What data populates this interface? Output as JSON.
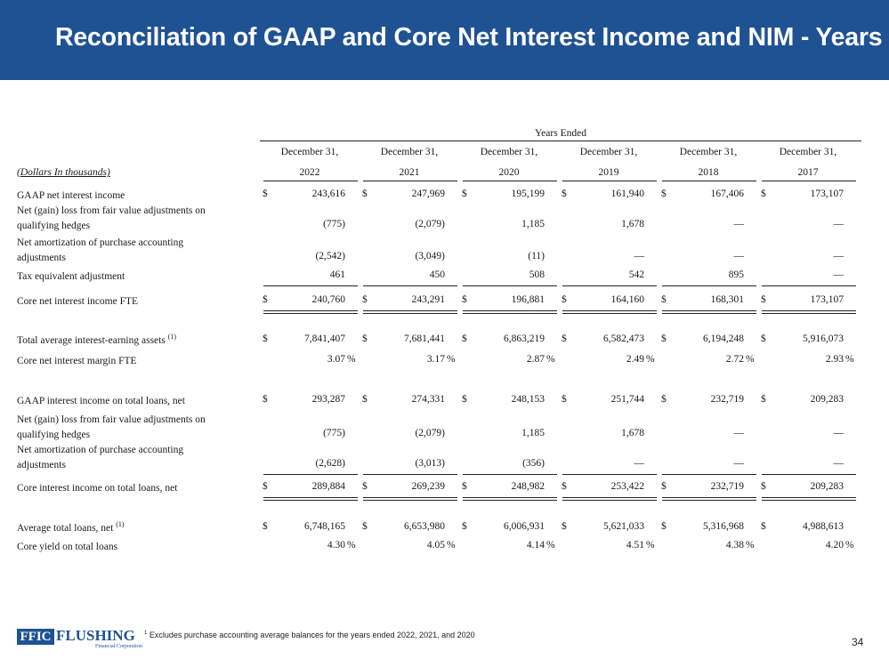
{
  "header": {
    "title": "Reconciliation of GAAP and Core Net Interest Income and NIM - Years"
  },
  "table": {
    "group_title": "Years Ended",
    "units_label": "(Dollars In thousands)",
    "columns": [
      {
        "month_day": "December 31,",
        "year": "2022"
      },
      {
        "month_day": "December 31,",
        "year": "2021"
      },
      {
        "month_day": "December 31,",
        "year": "2020"
      },
      {
        "month_day": "December 31,",
        "year": "2019"
      },
      {
        "month_day": "December 31,",
        "year": "2018"
      },
      {
        "month_day": "December 31,",
        "year": "2017"
      }
    ],
    "currency_symbol": "$",
    "percent_symbol": "%",
    "footnote_ref": "(1)",
    "rows": {
      "gaap_nii": {
        "label": "GAAP net interest income",
        "values": [
          "243,616",
          "247,969",
          "195,199",
          "161,940",
          "167,406",
          "173,107"
        ]
      },
      "fv_adj_1": {
        "label_line1": "Net (gain) loss from fair value adjustments on",
        "label_line2": "qualifying hedges",
        "values": [
          "(775)",
          "(2,079)",
          "1,185",
          "1,678",
          "—",
          "—"
        ]
      },
      "amort_1": {
        "label_line1": "Net amortization of purchase accounting",
        "label_line2": "adjustments",
        "values": [
          "(2,542)",
          "(3,049)",
          "(11)",
          "—",
          "—",
          "—"
        ]
      },
      "tax_eq": {
        "label": "Tax equivalent adjustment",
        "values": [
          "461",
          "450",
          "508",
          "542",
          "895",
          "—"
        ]
      },
      "core_nii": {
        "label": "Core net interest income FTE",
        "values": [
          "240,760",
          "243,291",
          "196,881",
          "164,160",
          "168,301",
          "173,107"
        ]
      },
      "avg_assets": {
        "label": "Total average interest-earning assets",
        "values": [
          "7,841,407",
          "7,681,441",
          "6,863,219",
          "6,582,473",
          "6,194,248",
          "5,916,073"
        ]
      },
      "core_nim": {
        "label": "Core net interest margin FTE",
        "values": [
          "3.07",
          "3.17",
          "2.87",
          "2.49",
          "2.72",
          "2.93"
        ]
      },
      "gaap_loans": {
        "label": "GAAP interest income on total loans, net",
        "values": [
          "293,287",
          "274,331",
          "248,153",
          "251,744",
          "232,719",
          "209,283"
        ]
      },
      "fv_adj_2": {
        "label_line1": "Net (gain) loss from fair value adjustments on",
        "label_line2": "qualifying hedges",
        "values": [
          "(775)",
          "(2,079)",
          "1,185",
          "1,678",
          "—",
          "—"
        ]
      },
      "amort_2": {
        "label_line1": "Net amortization of purchase accounting",
        "label_line2": "adjustments",
        "values": [
          "(2,628)",
          "(3,013)",
          "(356)",
          "—",
          "—",
          "—"
        ]
      },
      "core_loans": {
        "label": "Core interest income on total loans, net",
        "values": [
          "289,884",
          "269,239",
          "248,982",
          "253,422",
          "232,719",
          "209,283"
        ]
      },
      "avg_loans": {
        "label": "Average total loans, net",
        "values": [
          "6,748,165",
          "6,653,980",
          "6,006,931",
          "5,621,033",
          "5,316,968",
          "4,988,613"
        ]
      },
      "core_yield": {
        "label": "Core yield on total loans",
        "values": [
          "4.30",
          "4.05",
          "4.14",
          "4.51",
          "4.38",
          "4.20"
        ]
      }
    }
  },
  "footer": {
    "logo_ffic": "FFIC",
    "logo_name": "FLUSHING",
    "logo_sub": "Financial Corporation",
    "footnote_marker": "1",
    "footnote_text": "Excludes purchase accounting average balances for the years ended 2022, 2021, and 2020",
    "page_number": "34"
  }
}
